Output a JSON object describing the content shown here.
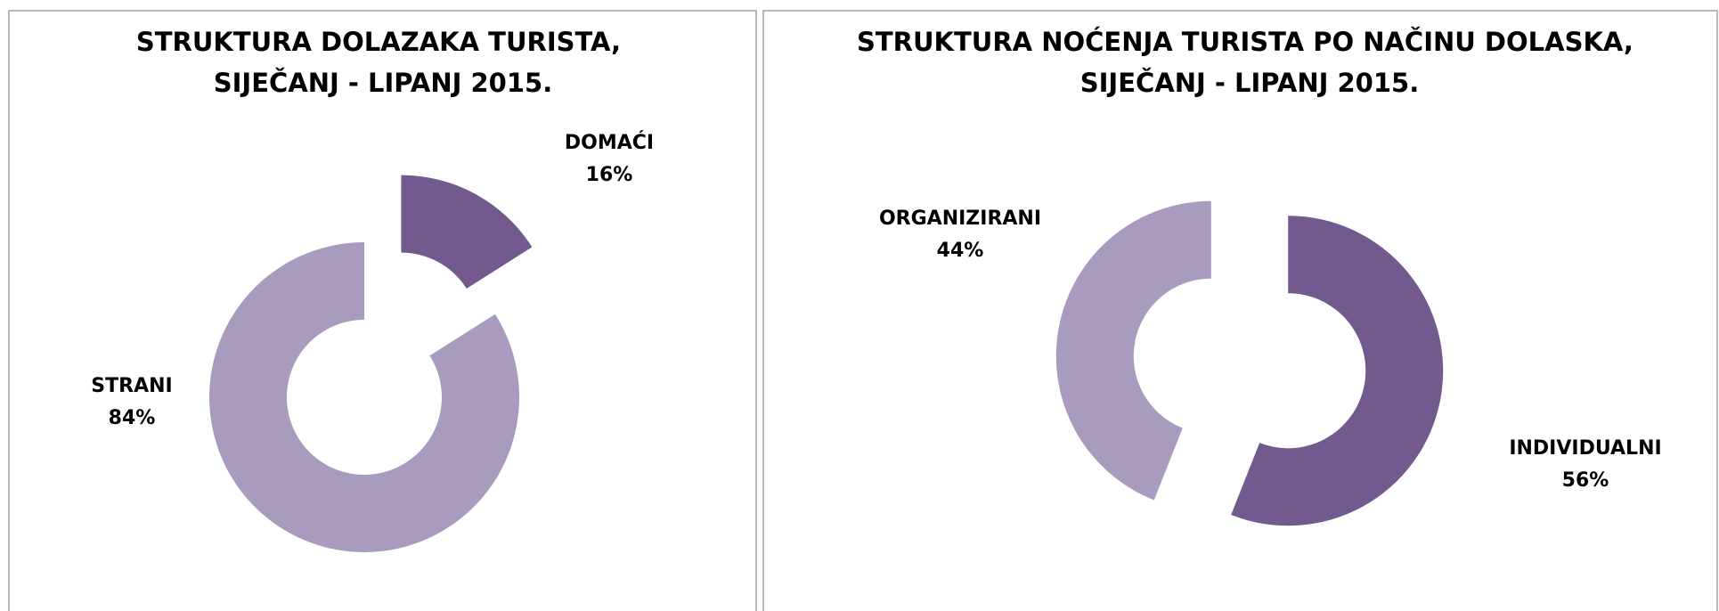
{
  "chart_data": [
    {
      "type": "donut",
      "title": "STRUKTURA DOLAZAKA TURISTA, SIJEČANJ - LIPANJ 2015.",
      "categories": [
        "DOMAĆI",
        "STRANI"
      ],
      "values": [
        16,
        84
      ],
      "value_labels": [
        "16%",
        "84%"
      ],
      "colors": [
        "#725a8f",
        "#a99bbe"
      ]
    },
    {
      "type": "donut",
      "title": "STRUKTURA NOĆENJA TURISTA PO NAČINU DOLASKA, SIJEČANJ - LIPANJ 2015.",
      "categories": [
        "INDIVIDUALNI",
        "ORGANIZIRANI"
      ],
      "values": [
        56,
        44
      ],
      "value_labels": [
        "56%",
        "44%"
      ],
      "colors": [
        "#725a8f",
        "#a99bbe"
      ]
    }
  ]
}
